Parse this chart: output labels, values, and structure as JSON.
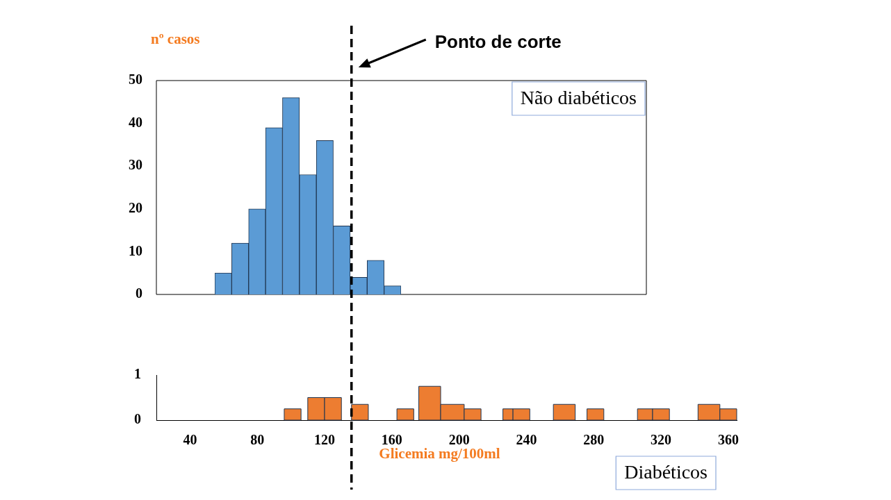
{
  "chart_data": [
    {
      "type": "bar",
      "ylabel": "nº casos",
      "categories": [
        null,
        null,
        null,
        null,
        null,
        null,
        null,
        null,
        null,
        null,
        null
      ],
      "values": [
        5,
        12,
        20,
        39,
        46,
        28,
        36,
        16,
        4,
        8,
        2
      ],
      "color": "#5b9bd5",
      "annotations": [
        "Não diabéticos"
      ],
      "ylim": [
        0,
        50
      ],
      "yticks": [
        0,
        10,
        20,
        30,
        40,
        50
      ],
      "tick_labels": "y"
    },
    {
      "type": "histogram",
      "xlabel": "Glicemia mg/100ml",
      "bins": [
        96,
        106,
        110,
        120,
        130,
        136,
        146,
        163,
        173,
        176,
        189,
        203,
        213,
        226,
        232,
        242,
        256,
        269,
        276,
        286,
        306,
        315,
        325,
        342,
        355,
        365
      ],
      "annotations": [
        "Diabéticos"
      ],
      "series": [
        {
          "color": "#ed7d31",
          "values": [
            0.25,
            0,
            0.5,
            0.5,
            0,
            0.35,
            0,
            0.25,
            0,
            0.75,
            0.35,
            0.25,
            0,
            0.25,
            0.25,
            0,
            0.35,
            0,
            0.25,
            0,
            0.25,
            0.25,
            0,
            0.35,
            0.25
          ]
        }
      ],
      "xlim": [
        20,
        365
      ],
      "xticks": [
        40,
        80,
        120,
        160,
        200,
        240,
        280,
        320,
        360
      ],
      "ylim": [
        0,
        1
      ],
      "yticks": [
        0,
        1
      ],
      "ref_lines": [
        {
          "axis": "x",
          "value": 136,
          "label": "Ponto de corte",
          "color": "#000000",
          "line_style": "dashed"
        }
      ]
    }
  ]
}
